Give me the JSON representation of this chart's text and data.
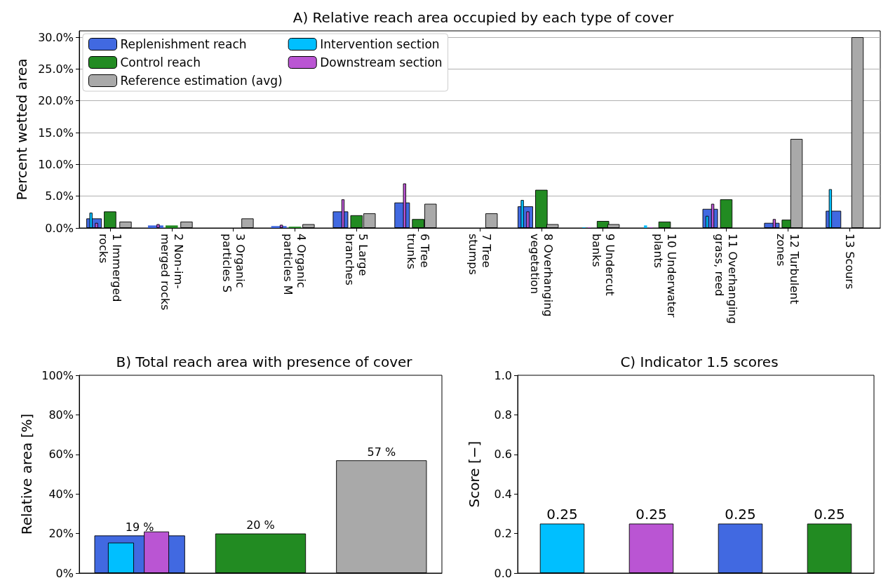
{
  "chart_data": [
    {
      "type": "bar",
      "title": "A) Relative reach area occupied by each type of cover",
      "ylabel": "Percent wetted area",
      "categories": [
        "1 Immerged\nrocks",
        "2 Non-im-\nmerged rocks",
        "3 Organic\nparticles S",
        "4 Organic\nparticles M",
        "5 Large\nbranches",
        "6 Tree\ntrunks",
        "7 Tree\nstumps",
        "8 Overhanging\nvegetation",
        "9 Undercut\nbanks",
        "10 Underwater\nplants",
        "11 Overhanging\ngrass, reed",
        "12 Turbulent\nzones",
        "13 Scours"
      ],
      "series": [
        {
          "name": "Replenishment reach",
          "color": "#4169e1",
          "values": [
            1.5,
            0.4,
            0,
            0.3,
            2.6,
            4.0,
            0,
            3.4,
            null,
            null,
            3.0,
            0.8,
            2.7
          ]
        },
        {
          "name": "Control reach",
          "color": "#228b22",
          "values": [
            2.6,
            0.4,
            0,
            0.2,
            2.0,
            1.4,
            0,
            6.0,
            1.1,
            1.0,
            4.5,
            1.3,
            0
          ]
        },
        {
          "name": "Reference estimation (avg)",
          "color": "#a9a9a9",
          "values": [
            1.0,
            1.0,
            1.5,
            0.6,
            2.3,
            3.8,
            2.3,
            0.6,
            0.6,
            0,
            0,
            14.0,
            30.0
          ]
        },
        {
          "name": "Intervention section",
          "color": "#00bfff",
          "values": [
            2.4,
            0,
            0,
            0,
            0,
            0,
            0,
            4.4,
            0.1,
            0.4,
            1.9,
            0,
            6.1
          ]
        },
        {
          "name": "Downstream section",
          "color": "#ba55d3",
          "values": [
            0.8,
            0.6,
            0,
            0.5,
            4.5,
            7.0,
            0,
            2.6,
            0.1,
            0.1,
            3.8,
            1.4,
            0
          ]
        }
      ],
      "ylim": [
        0,
        31
      ],
      "yticks": [
        {
          "value": 0,
          "label": "0.0%"
        },
        {
          "value": 5,
          "label": "5.0%"
        },
        {
          "value": 10,
          "label": "10.0%"
        },
        {
          "value": 15,
          "label": "15.0%"
        },
        {
          "value": 20,
          "label": "20.0%"
        },
        {
          "value": 25,
          "label": "25.0%"
        },
        {
          "value": 30,
          "label": "30.0%"
        }
      ],
      "grid": "y",
      "legend": "top left"
    },
    {
      "type": "bar",
      "title": "B) Total reach area with presence of cover",
      "ylabel": "Relative area [%]",
      "categories": [
        null,
        null,
        null
      ],
      "series": [
        {
          "colors": [
            "#4169e1",
            "#228b22",
            "#a9a9a9"
          ],
          "values": [
            19,
            20,
            57
          ],
          "value_labels": [
            "19 %",
            "20 %",
            "57 %"
          ]
        },
        {
          "color": "#00bfff",
          "values": [
            15.4,
            null,
            null
          ]
        },
        {
          "color": "#ba55d3",
          "values": [
            21,
            null,
            null
          ]
        }
      ],
      "ylim": [
        0,
        100
      ],
      "yticks": [
        {
          "value": 0,
          "label": "0%"
        },
        {
          "value": 20,
          "label": "20%"
        },
        {
          "value": 40,
          "label": "40%"
        },
        {
          "value": 60,
          "label": "60%"
        },
        {
          "value": 80,
          "label": "80%"
        },
        {
          "value": 100,
          "label": "100%"
        }
      ],
      "tick_labels": "y"
    },
    {
      "type": "bar",
      "title": "C) Indicator 1.5 scores",
      "ylabel": "Score [−]",
      "categories": [
        null,
        null,
        null,
        null
      ],
      "values": [
        0.25,
        0.25,
        0.25,
        0.25
      ],
      "colors": [
        "#00bfff",
        "#ba55d3",
        "#4169e1",
        "#228b22"
      ],
      "data_labels": true,
      "ylim": [
        0,
        1
      ],
      "yticks": [
        {
          "value": 0,
          "label": "0.0"
        },
        {
          "value": 0.2,
          "label": "0.2"
        },
        {
          "value": 0.4,
          "label": "0.4"
        },
        {
          "value": 0.6,
          "label": "0.6"
        },
        {
          "value": 0.8,
          "label": "0.8"
        },
        {
          "value": 1,
          "label": "1.0"
        }
      ],
      "tick_labels": "y"
    }
  ]
}
